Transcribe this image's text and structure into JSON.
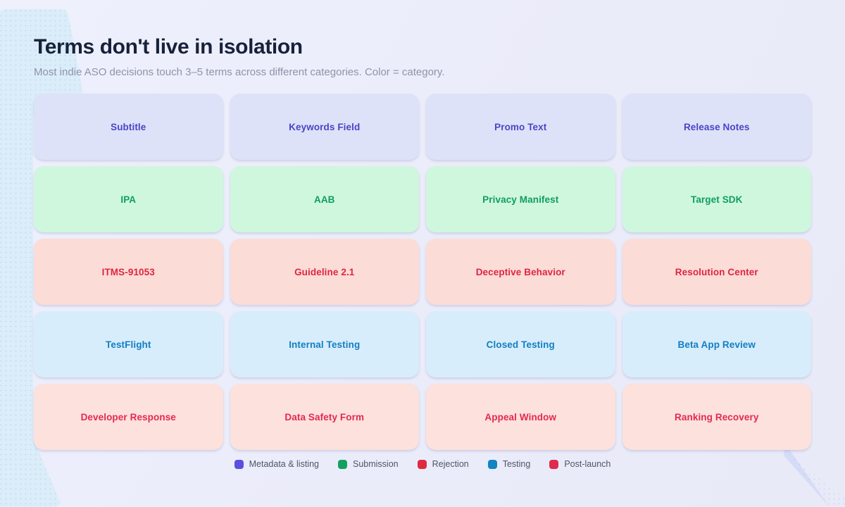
{
  "header": {
    "title": "Terms don't live in isolation",
    "subtitle": "Most indie ASO decisions touch 3–5 terms across different categories. Color = category."
  },
  "colors": {
    "background": "#ebecfa",
    "deco_blue": "#daedf9",
    "deco_lavender": "#d6dcf7",
    "title": "#18213a",
    "subtitle_text": "#8f93a6",
    "legend_text": "#4d5566"
  },
  "chart_data": {
    "type": "table",
    "title": "Terms don't live in isolation",
    "subtitle": "Most indie ASO decisions touch 3–5 terms across different categories. Color = category.",
    "legend_position": "bottom-center",
    "rows": [
      {
        "category": "Metadata & listing",
        "card_bg": "#dde2f8",
        "card_fg": "#4a44c8",
        "terms": [
          "Subtitle",
          "Keywords Field",
          "Promo Text",
          "Release Notes"
        ]
      },
      {
        "category": "Submission",
        "card_bg": "#cff7de",
        "card_fg": "#0f9d62",
        "terms": [
          "IPA",
          "AAB",
          "Privacy Manifest",
          "Target SDK"
        ]
      },
      {
        "category": "Rejection",
        "card_bg": "#fcdcd7",
        "card_fg": "#df2540",
        "terms": [
          "ITMS-91053",
          "Guideline 2.1",
          "Deceptive Behavior",
          "Resolution Center"
        ]
      },
      {
        "category": "Testing",
        "card_bg": "#d8edfb",
        "card_fg": "#127ec3",
        "terms": [
          "TestFlight",
          "Internal Testing",
          "Closed Testing",
          "Beta App Review"
        ]
      },
      {
        "category": "Post-launch",
        "card_bg": "#fce1dc",
        "card_fg": "#e42950",
        "terms": [
          "Developer Response",
          "Data Safety Form",
          "Appeal Window",
          "Ranking Recovery"
        ]
      }
    ],
    "legend": [
      {
        "label": "Metadata & listing",
        "color": "#5a4fe0"
      },
      {
        "label": "Submission",
        "color": "#13a060"
      },
      {
        "label": "Rejection",
        "color": "#de2b40"
      },
      {
        "label": "Testing",
        "color": "#1185c2"
      },
      {
        "label": "Post-launch",
        "color": "#de2b4e"
      }
    ]
  }
}
